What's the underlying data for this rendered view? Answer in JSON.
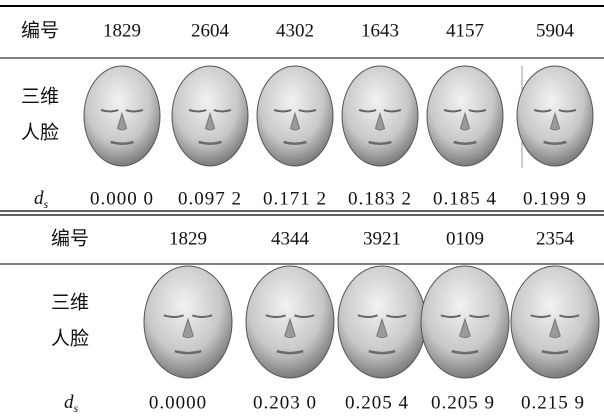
{
  "tables": [
    {
      "header": {
        "label": "编号",
        "ids": [
          "1829",
          "2604",
          "4302",
          "1643",
          "4157",
          "5904"
        ]
      },
      "face_row": {
        "label_lines": [
          "三维",
          "人脸"
        ]
      },
      "distance_row": {
        "symbol": "d",
        "subscript": "s",
        "values": [
          "0.000 0",
          "0.097 2",
          "0.171 2",
          "0.183 2",
          "0.185 4",
          "0.199 9"
        ]
      }
    },
    {
      "header": {
        "label": "编号",
        "ids": [
          "1829",
          "4344",
          "3921",
          "0109",
          "2354"
        ]
      },
      "face_row": {
        "label_lines": [
          "三维",
          "人脸"
        ]
      },
      "distance_row": {
        "symbol": "d",
        "subscript": "s",
        "values": [
          "0.0000",
          "0.203 0",
          "0.205 4",
          "0.205 9",
          "0.215 9"
        ]
      }
    }
  ]
}
